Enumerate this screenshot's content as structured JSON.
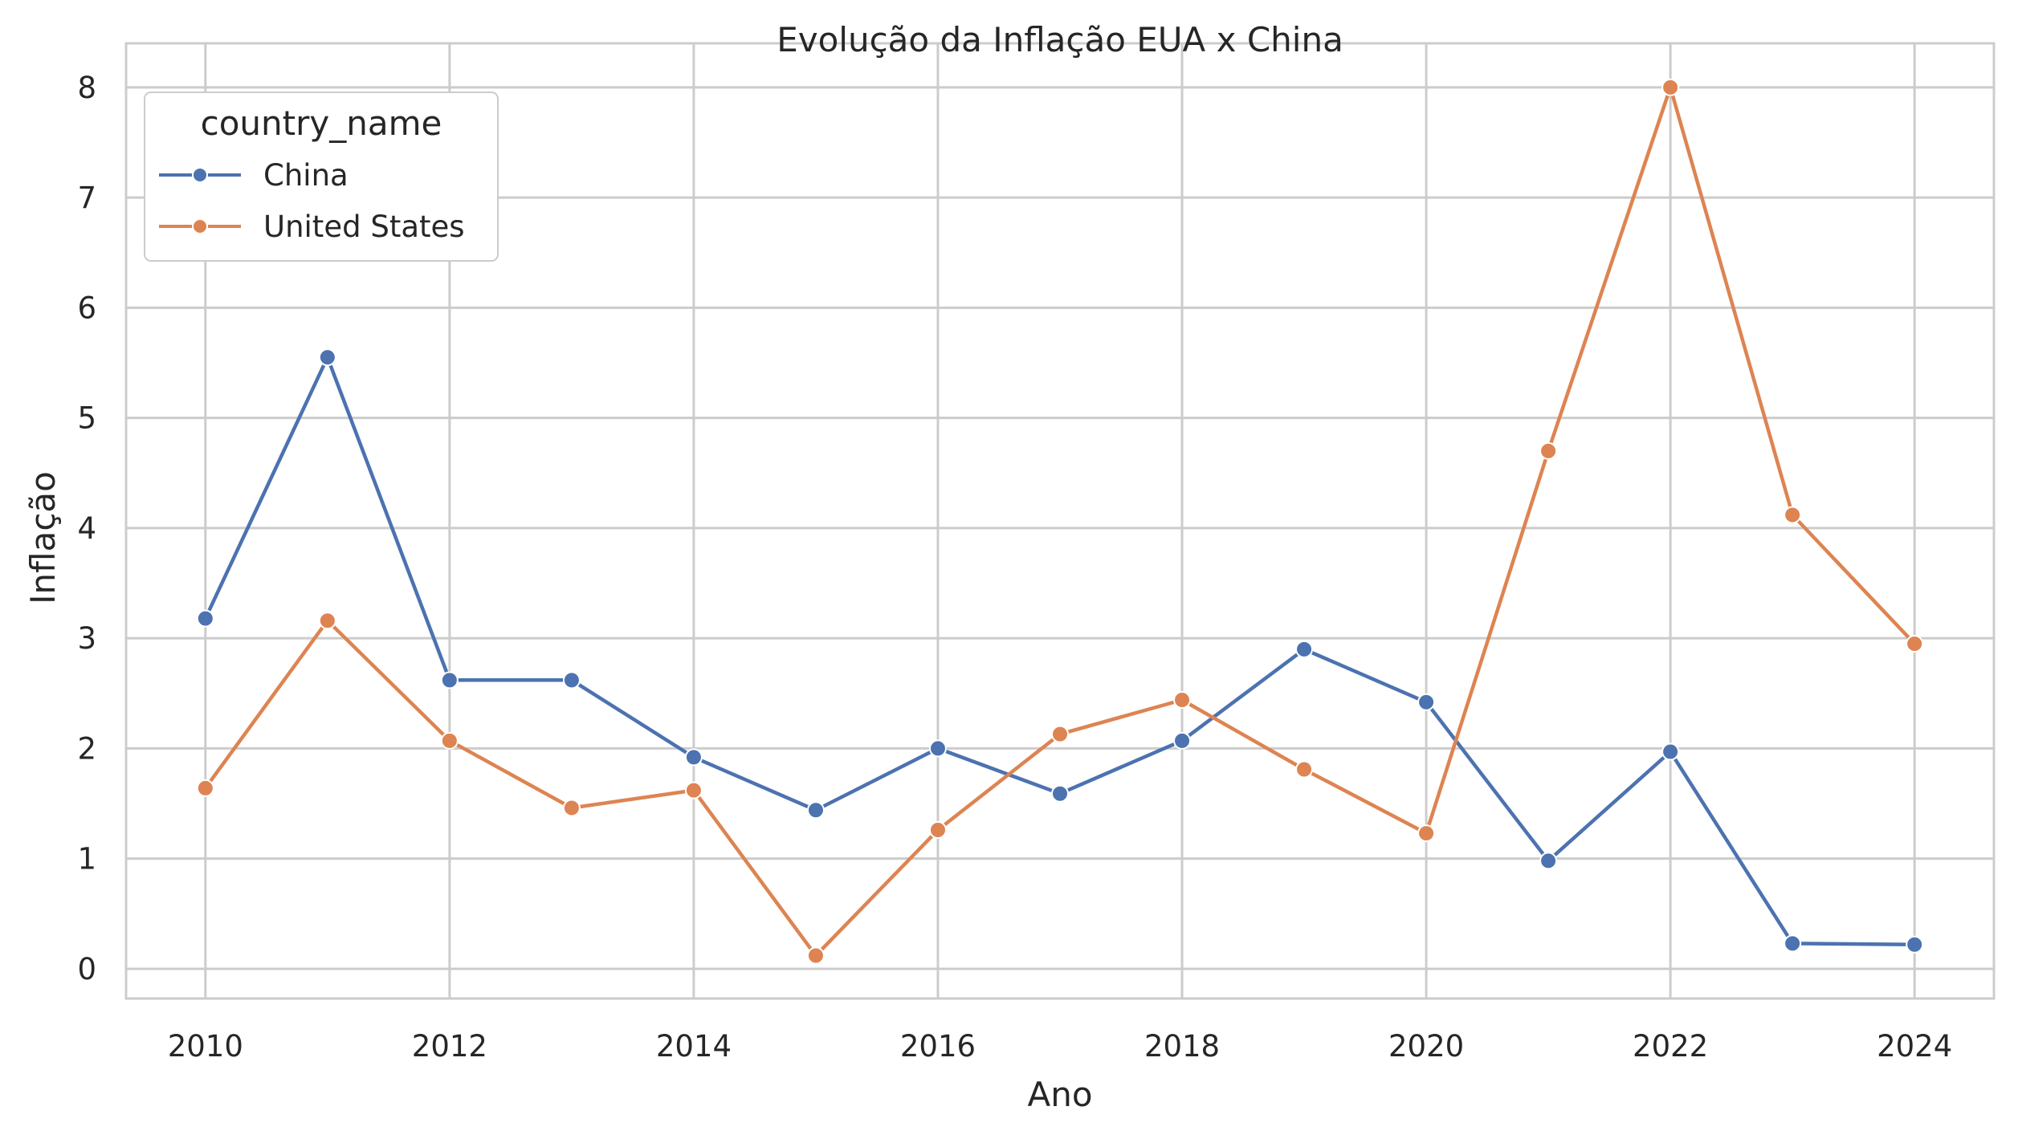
{
  "chart_data": {
    "type": "line",
    "title": "Evolução da Inflação EUA x China",
    "xlabel": "Ano",
    "ylabel": "Inflação",
    "x": [
      2010,
      2011,
      2012,
      2013,
      2014,
      2015,
      2016,
      2017,
      2018,
      2019,
      2020,
      2021,
      2022,
      2023,
      2024
    ],
    "xticks": [
      2010,
      2012,
      2014,
      2016,
      2018,
      2020,
      2022,
      2024
    ],
    "yticks": [
      0,
      1,
      2,
      3,
      4,
      5,
      6,
      7,
      8
    ],
    "xlim": [
      2009.35,
      2024.65
    ],
    "ylim": [
      -0.27,
      8.4
    ],
    "grid": true,
    "legend": {
      "title": "country_name",
      "placement": "top-left"
    },
    "series": [
      {
        "name": "China",
        "color": "#4c72b0",
        "values": [
          3.18,
          5.55,
          2.62,
          2.62,
          1.92,
          1.44,
          2.0,
          1.59,
          2.07,
          2.9,
          2.42,
          0.98,
          1.97,
          0.23,
          0.22
        ]
      },
      {
        "name": "United States",
        "color": "#dd8452",
        "values": [
          1.64,
          3.16,
          2.07,
          1.46,
          1.62,
          0.12,
          1.26,
          2.13,
          2.44,
          1.81,
          1.23,
          4.7,
          8.0,
          4.12,
          2.95
        ]
      }
    ]
  }
}
